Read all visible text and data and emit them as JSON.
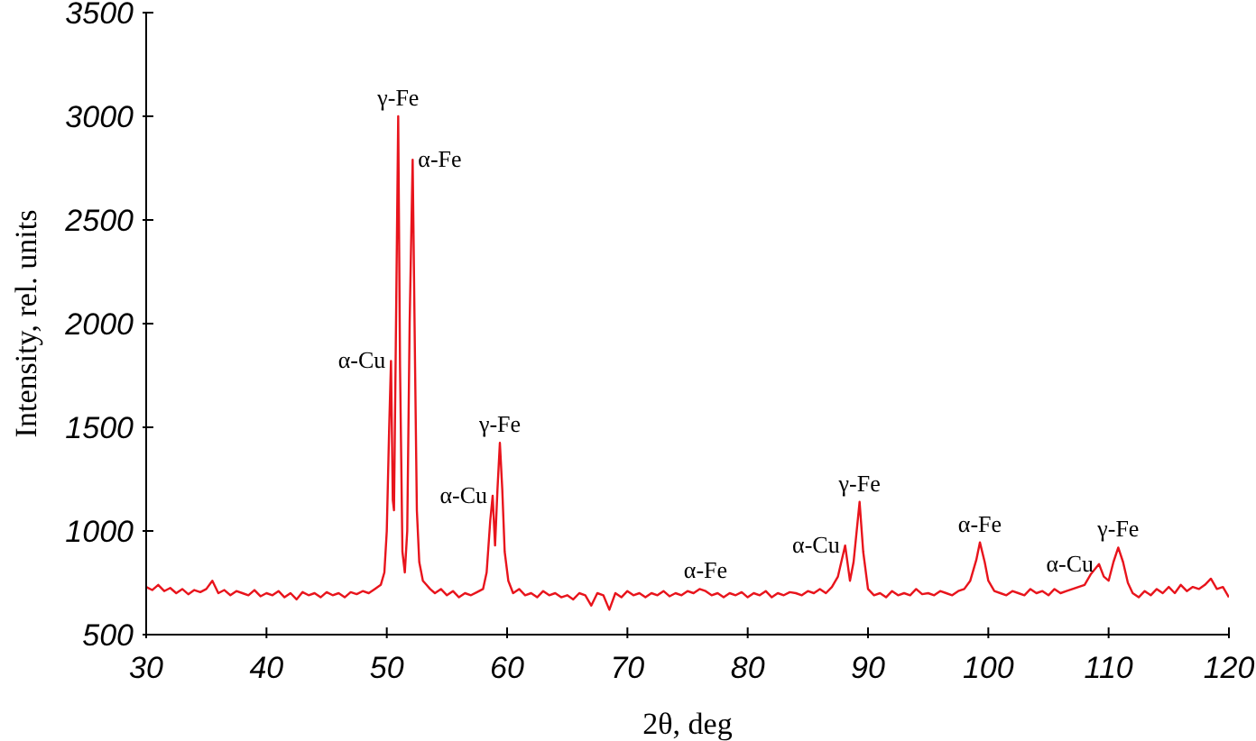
{
  "chart_data": {
    "type": "line",
    "xlabel": "2θ, deg",
    "ylabel": "Intensity, rel. units",
    "xlim": [
      30,
      120
    ],
    "xticks": [
      30,
      40,
      50,
      60,
      70,
      80,
      90,
      100,
      110,
      120
    ],
    "ylim": [
      500,
      3500
    ],
    "yticks": [
      500,
      1000,
      1500,
      2000,
      2500,
      3000,
      3500
    ],
    "grid": false,
    "legend": false,
    "marker": "none",
    "line_style": "solid",
    "annotations": [
      {
        "text": "α-Cu",
        "x": 50.35,
        "y": 1820
      },
      {
        "text": "γ-Fe",
        "x": 50.95,
        "y": 3000
      },
      {
        "text": "α-Fe",
        "x": 52.15,
        "y": 2790
      },
      {
        "text": "α-Cu",
        "x": 58.8,
        "y": 1170
      },
      {
        "text": "γ-Fe",
        "x": 59.4,
        "y": 1425
      },
      {
        "text": "α-Fe",
        "x": 76.5,
        "y": 720
      },
      {
        "text": "α-Cu",
        "x": 88.1,
        "y": 930
      },
      {
        "text": "γ-Fe",
        "x": 89.3,
        "y": 1140
      },
      {
        "text": "α-Fe",
        "x": 99.3,
        "y": 945
      },
      {
        "text": "α-Cu",
        "x": 109.2,
        "y": 840
      },
      {
        "text": "γ-Fe",
        "x": 110.8,
        "y": 920
      }
    ],
    "series": [
      {
        "color": "#e8141c",
        "x": [
          30,
          30.5,
          31,
          31.5,
          32,
          32.5,
          33,
          33.5,
          34,
          34.5,
          35,
          35.5,
          36,
          36.5,
          37,
          37.5,
          38,
          38.5,
          39,
          39.5,
          40,
          40.5,
          41,
          41.5,
          42,
          42.5,
          43,
          43.5,
          44,
          44.5,
          45,
          45.5,
          46,
          46.5,
          47,
          47.5,
          48,
          48.5,
          49,
          49.5,
          49.8,
          50,
          50.2,
          50.35,
          50.5,
          50.6,
          50.75,
          50.95,
          51.1,
          51.3,
          51.5,
          51.7,
          51.9,
          52.15,
          52.35,
          52.5,
          52.7,
          53,
          53.3,
          53.6,
          54,
          54.5,
          55,
          55.5,
          56,
          56.5,
          57,
          57.5,
          58,
          58.3,
          58.6,
          58.8,
          59,
          59.2,
          59.4,
          59.6,
          59.8,
          60.1,
          60.5,
          61,
          61.5,
          62,
          62.5,
          63,
          63.5,
          64,
          64.5,
          65,
          65.5,
          66,
          66.5,
          67,
          67.5,
          68,
          68.5,
          69,
          69.5,
          70,
          70.5,
          71,
          71.5,
          72,
          72.5,
          73,
          73.5,
          74,
          74.5,
          75,
          75.5,
          76,
          76.5,
          77,
          77.5,
          78,
          78.5,
          79,
          79.5,
          80,
          80.5,
          81,
          81.5,
          82,
          82.5,
          83,
          83.5,
          84,
          84.5,
          85,
          85.5,
          86,
          86.5,
          87,
          87.5,
          88.1,
          88.5,
          88.8,
          89.3,
          89.6,
          90,
          90.5,
          91,
          91.5,
          92,
          92.5,
          93,
          93.5,
          94,
          94.5,
          95,
          95.5,
          96,
          96.5,
          97,
          97.5,
          98,
          98.5,
          99,
          99.3,
          99.7,
          100,
          100.5,
          101,
          101.5,
          102,
          102.5,
          103,
          103.5,
          104,
          104.5,
          105,
          105.5,
          106,
          106.5,
          107,
          107.5,
          108,
          108.5,
          109.2,
          109.6,
          110,
          110.4,
          110.8,
          111.2,
          111.6,
          112,
          112.5,
          113,
          113.5,
          114,
          114.5,
          115,
          115.5,
          116,
          116.5,
          117,
          117.5,
          118,
          118.5,
          119,
          119.5,
          120
        ],
        "values": [
          730,
          715,
          740,
          710,
          725,
          700,
          720,
          695,
          715,
          705,
          720,
          760,
          700,
          715,
          690,
          710,
          700,
          690,
          715,
          685,
          700,
          690,
          710,
          680,
          700,
          670,
          705,
          690,
          700,
          680,
          705,
          690,
          700,
          680,
          705,
          695,
          710,
          700,
          720,
          740,
          800,
          1000,
          1500,
          1820,
          1150,
          1100,
          1900,
          3000,
          1800,
          900,
          800,
          1000,
          2000,
          2790,
          1800,
          1100,
          850,
          760,
          740,
          720,
          700,
          720,
          690,
          710,
          680,
          700,
          690,
          705,
          720,
          800,
          1050,
          1170,
          930,
          1200,
          1425,
          1200,
          900,
          760,
          700,
          720,
          690,
          700,
          680,
          710,
          690,
          700,
          680,
          690,
          670,
          700,
          690,
          640,
          700,
          690,
          620,
          700,
          680,
          710,
          690,
          700,
          680,
          700,
          690,
          710,
          685,
          700,
          690,
          710,
          700,
          720,
          710,
          690,
          700,
          680,
          700,
          690,
          705,
          680,
          700,
          690,
          710,
          680,
          700,
          690,
          705,
          700,
          690,
          710,
          700,
          720,
          700,
          730,
          780,
          930,
          760,
          850,
          1140,
          900,
          720,
          690,
          700,
          680,
          710,
          690,
          700,
          690,
          720,
          695,
          700,
          690,
          710,
          700,
          690,
          710,
          720,
          760,
          860,
          945,
          850,
          760,
          710,
          700,
          690,
          710,
          700,
          690,
          720,
          700,
          710,
          690,
          720,
          700,
          710,
          720,
          730,
          740,
          790,
          840,
          780,
          760,
          850,
          920,
          850,
          750,
          700,
          680,
          710,
          690,
          720,
          700,
          730,
          700,
          740,
          710,
          730,
          720,
          740,
          770,
          720,
          730,
          680
        ]
      }
    ]
  }
}
